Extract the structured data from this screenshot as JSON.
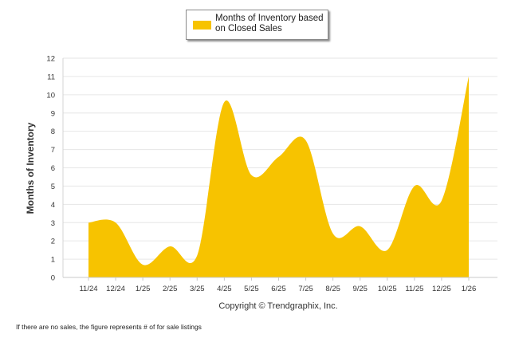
{
  "chart_data": {
    "type": "area",
    "title": "",
    "xlabel": "",
    "ylabel": "Months of Inventory",
    "ylim": [
      0,
      12
    ],
    "yticks": [
      0,
      1,
      2,
      3,
      4,
      5,
      6,
      7,
      8,
      9,
      10,
      11,
      12
    ],
    "grid": true,
    "legend_placement": "top-center",
    "categories": [
      "11/24",
      "12/24",
      "1/25",
      "2/25",
      "3/25",
      "4/25",
      "5/25",
      "6/25",
      "7/25",
      "8/25",
      "9/25",
      "10/25",
      "11/25",
      "12/25",
      "1/26"
    ],
    "series": [
      {
        "name": "Months of Inventory based on Closed Sales",
        "color": "#F7C300",
        "values": [
          3.0,
          3.0,
          0.7,
          1.7,
          1.2,
          9.6,
          5.6,
          6.6,
          7.5,
          2.4,
          2.8,
          1.5,
          5.0,
          4.2,
          11.0
        ]
      }
    ],
    "copyright": "Copyright © Trendgraphix, Inc.",
    "footnote": "If there are no sales, the figure represents # of for sale listings"
  }
}
